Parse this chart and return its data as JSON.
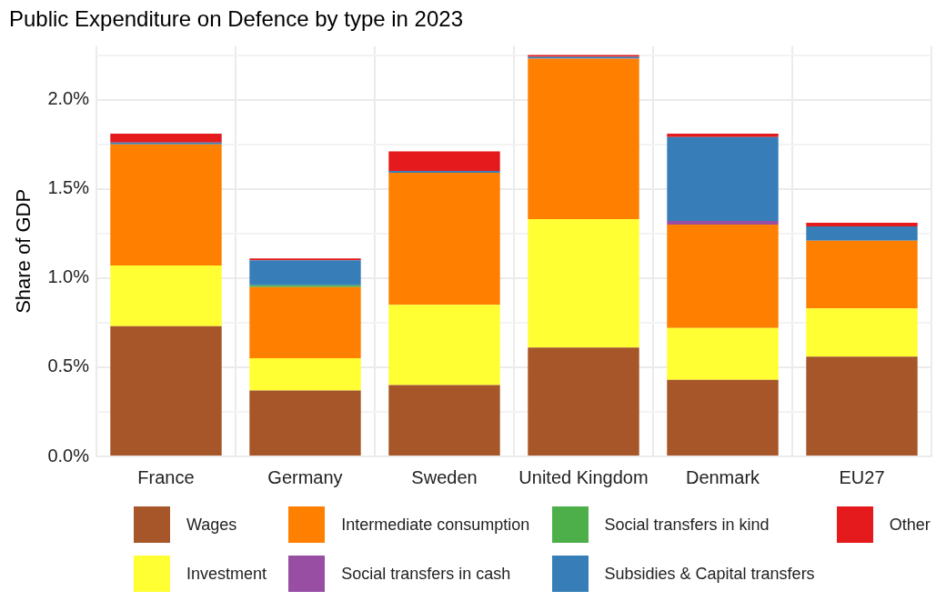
{
  "chart_data": {
    "type": "bar",
    "title": "Public Expenditure on Defence by type in 2023",
    "ylabel": "Share of GDP",
    "stacked": true,
    "grid": true,
    "legend": "bottom",
    "categories": [
      "France",
      "Germany",
      "Sweden",
      "United Kingdom",
      "Denmark",
      "EU27"
    ],
    "ylim": [
      0,
      2.3
    ],
    "yticks": [
      {
        "value": 0,
        "label": "0.0%"
      },
      {
        "value": 0.25,
        "label": null
      },
      {
        "value": 0.5,
        "label": "0.5%"
      },
      {
        "value": 0.75,
        "label": null
      },
      {
        "value": 1,
        "label": "1.0%"
      },
      {
        "value": 1.25,
        "label": null
      },
      {
        "value": 1.5,
        "label": "1.5%"
      },
      {
        "value": 1.75,
        "label": null
      },
      {
        "value": 2,
        "label": "2.0%"
      },
      {
        "value": 2.25,
        "label": null
      }
    ],
    "series": [
      {
        "name": "Wages",
        "color": "#a65628",
        "values": [
          0.73,
          0.37,
          0.4,
          0.61,
          0.43,
          0.56
        ]
      },
      {
        "name": "Investment",
        "color": "#ffff33",
        "values": [
          0.34,
          0.18,
          0.45,
          0.72,
          0.29,
          0.27
        ]
      },
      {
        "name": "Intermediate consumption",
        "color": "#ff7f00",
        "values": [
          0.68,
          0.4,
          0.74,
          0.9,
          0.58,
          0.38
        ]
      },
      {
        "name": "Social transfers in cash",
        "color": "#984ea3",
        "values": [
          0,
          0,
          0,
          0,
          0.02,
          0
        ]
      },
      {
        "name": "Social transfers in kind",
        "color": "#4daf4a",
        "values": [
          0,
          0.01,
          0,
          0,
          0,
          0
        ]
      },
      {
        "name": "Subsidies & Capital transfers",
        "color": "#377eb8",
        "values": [
          0.01,
          0.14,
          0.01,
          0.01,
          0.47,
          0.08
        ]
      },
      {
        "name": "Other",
        "color": "#e41a1c",
        "values": [
          0.05,
          0.01,
          0.11,
          0.01,
          0.02,
          0.02
        ]
      }
    ]
  }
}
